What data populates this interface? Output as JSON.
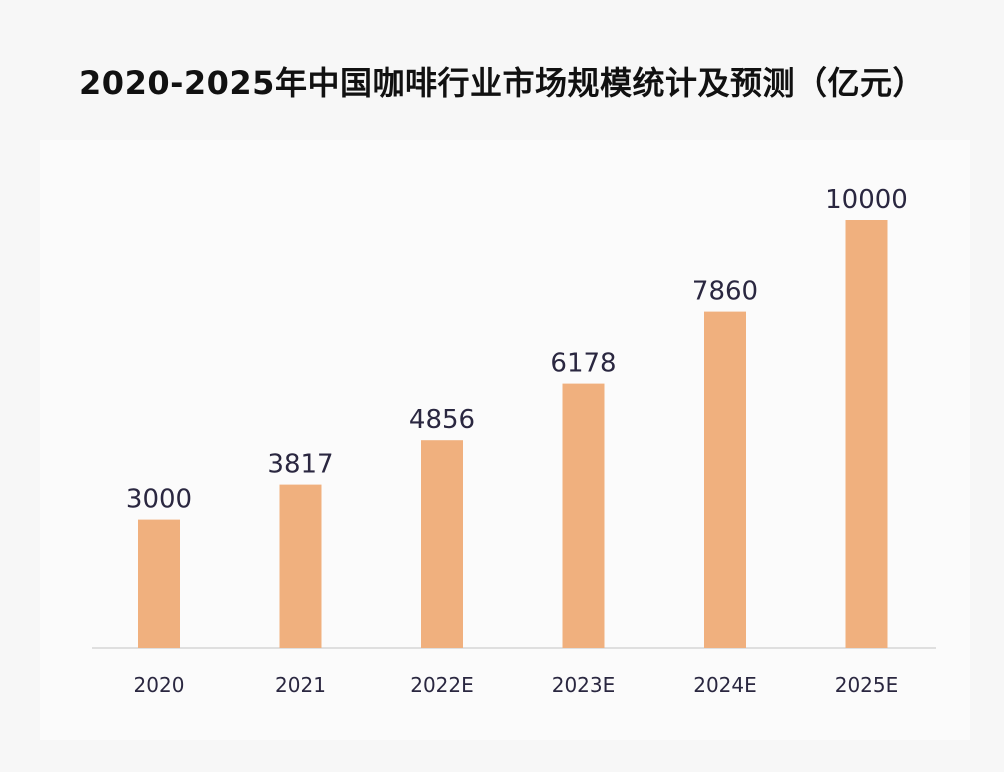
{
  "chart_data": {
    "type": "bar",
    "title": "2020-2025年中国咖啡行业市场规模统计及预测（亿元）",
    "categories": [
      "2020",
      "2021",
      "2022E",
      "2023E",
      "2024E",
      "2025E"
    ],
    "values": [
      3000,
      3817,
      4856,
      6178,
      7860,
      10000
    ],
    "xlabel": "",
    "ylabel": "",
    "ylim": [
      0,
      10000
    ],
    "grid": false,
    "legend": "none",
    "bar_color": "#f0b07e"
  }
}
